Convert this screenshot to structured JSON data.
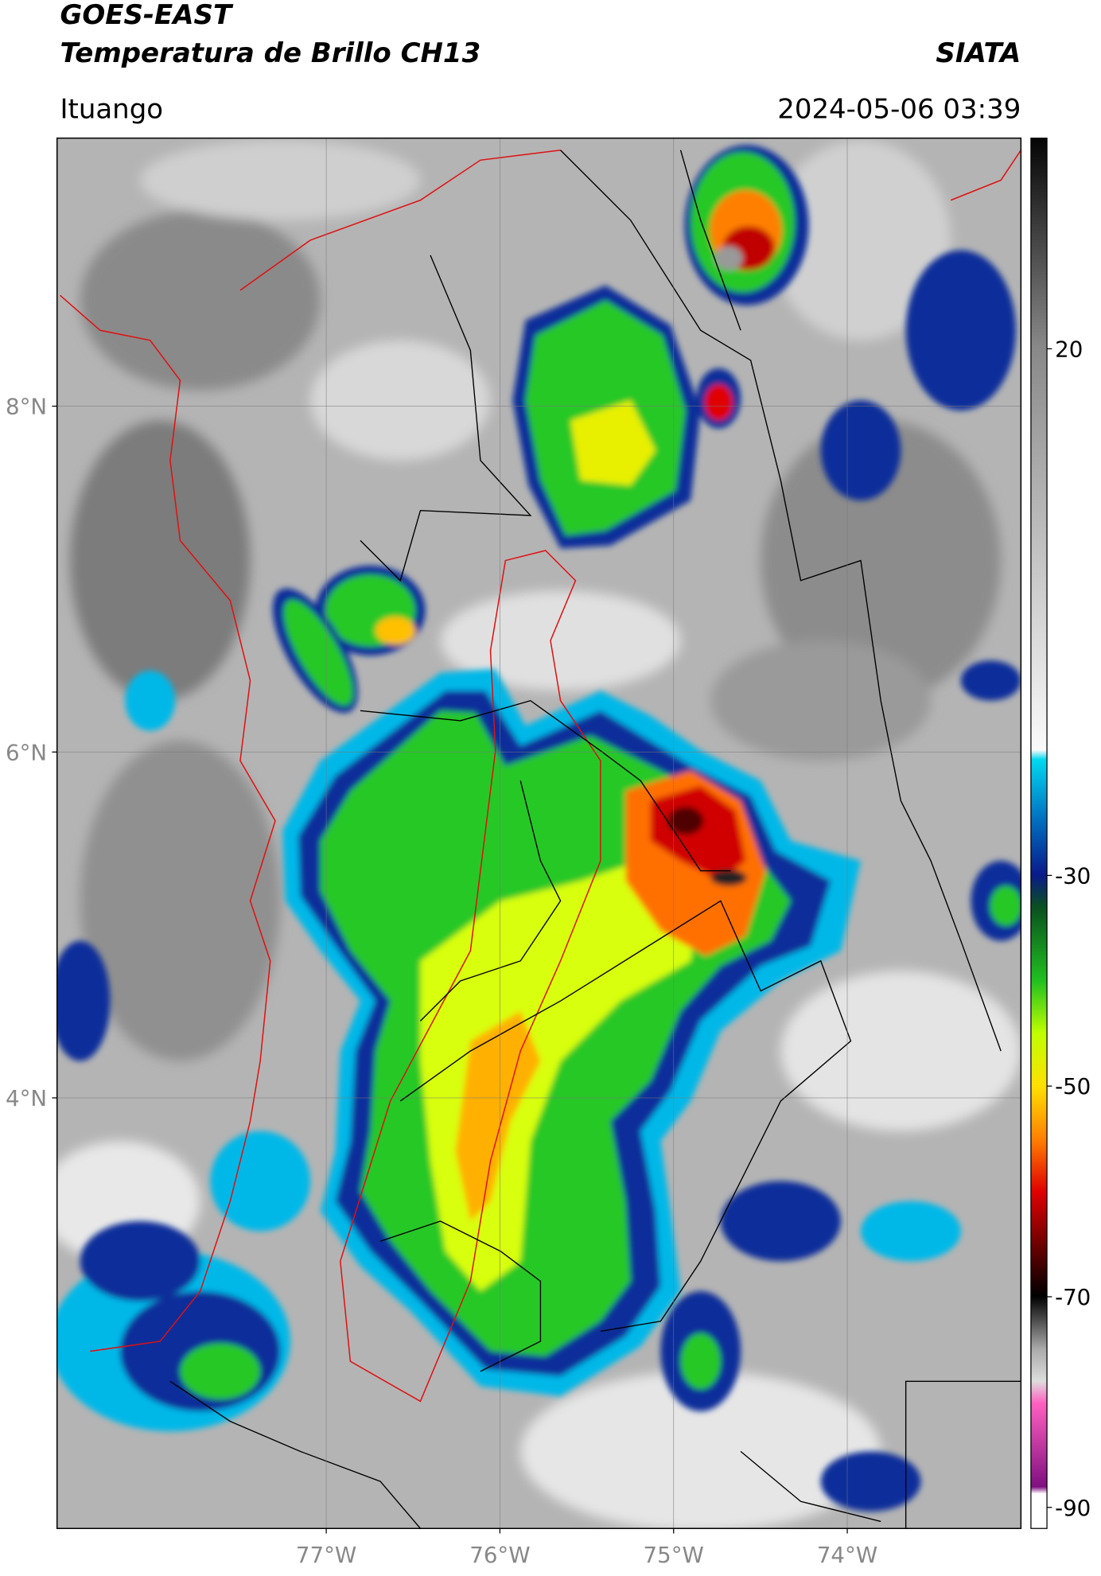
{
  "header": {
    "satellite": "GOES-EAST",
    "product": "Temperatura de Brillo CH13",
    "source": "SIATA",
    "location": "Ituango",
    "datetime": "2024-05-06 03:39"
  },
  "map": {
    "xlim": [
      -78.55,
      -73.0
    ],
    "ylim": [
      1.51,
      9.55
    ],
    "xticks": [
      {
        "value": -77,
        "label": "77°W"
      },
      {
        "value": -76,
        "label": "76°W"
      },
      {
        "value": -75,
        "label": "75°W"
      },
      {
        "value": -74,
        "label": "74°W"
      }
    ],
    "yticks": [
      {
        "value": 8,
        "label": "8°N"
      },
      {
        "value": 6,
        "label": "6°N"
      },
      {
        "value": 4,
        "label": "4°N"
      }
    ]
  },
  "colorbar": {
    "range": [
      -92,
      40
    ],
    "ticks": [
      20,
      -30,
      -50,
      -70,
      -90
    ]
  }
}
